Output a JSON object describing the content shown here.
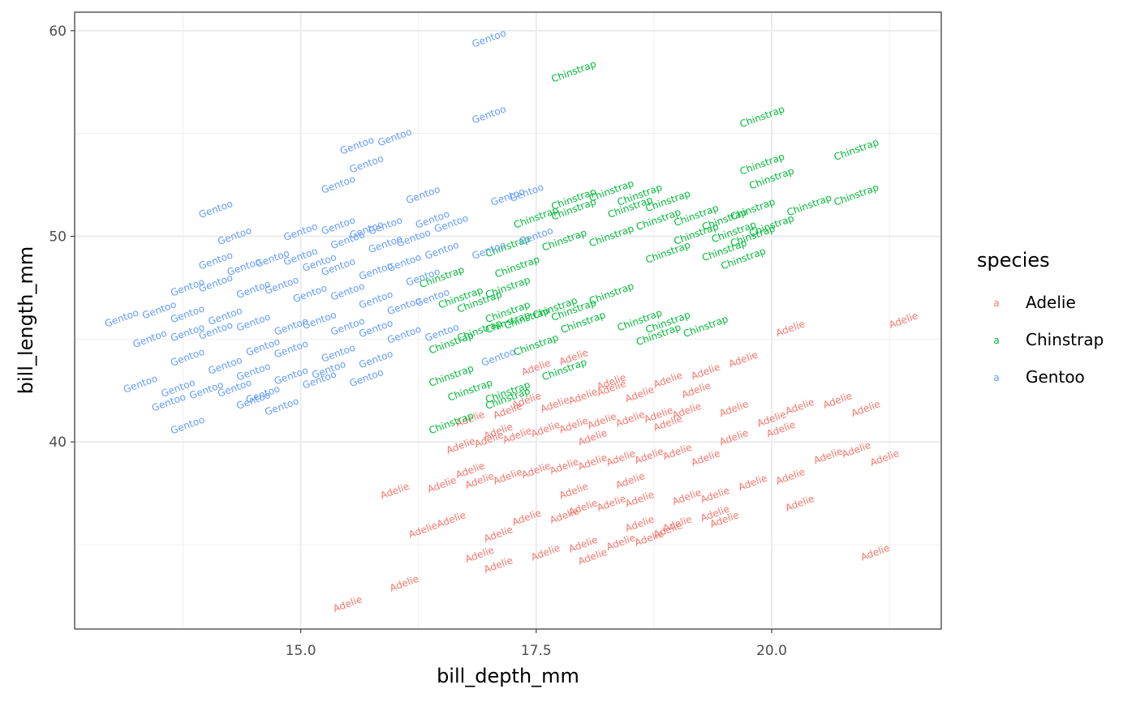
{
  "chart_data": {
    "type": "scatter",
    "title": "",
    "xlabel": "bill_depth_mm",
    "ylabel": "bill_length_mm",
    "xlim": [
      12.6,
      21.8
    ],
    "ylim": [
      30.9,
      60.9
    ],
    "x_ticks": [
      15.0,
      17.5,
      20.0
    ],
    "x_tick_labels": [
      "15.0",
      "17.5",
      "20.0"
    ],
    "y_ticks": [
      40,
      50,
      60
    ],
    "y_tick_labels": [
      "40",
      "50",
      "60"
    ],
    "grid": true,
    "marker": "text label (species name), rotated ~ -20°",
    "legend": {
      "title": "species",
      "placement": "right",
      "key_glyph": "a"
    },
    "series": [
      {
        "name": "Adelie",
        "color": "#F8766D",
        "points": [
          [
            15.5,
            32.1
          ],
          [
            16.1,
            33.1
          ],
          [
            17.1,
            34.0
          ],
          [
            16.9,
            34.5
          ],
          [
            17.6,
            34.6
          ],
          [
            18.1,
            34.4
          ],
          [
            18.4,
            35.1
          ],
          [
            18.0,
            35.0
          ],
          [
            17.1,
            35.5
          ],
          [
            18.7,
            35.3
          ],
          [
            18.9,
            35.7
          ],
          [
            19.0,
            36.0
          ],
          [
            19.5,
            36.2
          ],
          [
            20.3,
            37.0
          ],
          [
            21.1,
            34.6
          ],
          [
            16.3,
            35.7
          ],
          [
            16.6,
            36.2
          ],
          [
            17.4,
            36.3
          ],
          [
            17.8,
            36.4
          ],
          [
            18.0,
            36.8
          ],
          [
            18.3,
            37.0
          ],
          [
            18.6,
            37.2
          ],
          [
            19.1,
            37.3
          ],
          [
            19.4,
            37.4
          ],
          [
            16.0,
            37.6
          ],
          [
            16.5,
            37.9
          ],
          [
            16.9,
            38.1
          ],
          [
            17.2,
            38.3
          ],
          [
            17.5,
            38.6
          ],
          [
            17.8,
            38.8
          ],
          [
            18.1,
            39.0
          ],
          [
            18.4,
            39.2
          ],
          [
            18.7,
            39.3
          ],
          [
            19.0,
            39.5
          ],
          [
            19.3,
            39.2
          ],
          [
            19.8,
            38.0
          ],
          [
            20.2,
            38.3
          ],
          [
            20.6,
            39.3
          ],
          [
            20.9,
            39.6
          ],
          [
            21.2,
            39.2
          ],
          [
            16.7,
            39.8
          ],
          [
            17.0,
            40.1
          ],
          [
            17.3,
            40.3
          ],
          [
            17.6,
            40.6
          ],
          [
            17.9,
            40.8
          ],
          [
            18.2,
            41.0
          ],
          [
            18.5,
            41.1
          ],
          [
            18.8,
            41.3
          ],
          [
            19.1,
            41.5
          ],
          [
            19.6,
            41.6
          ],
          [
            20.0,
            41.1
          ],
          [
            20.3,
            41.7
          ],
          [
            20.7,
            42.0
          ],
          [
            21.0,
            41.6
          ],
          [
            16.8,
            41.1
          ],
          [
            17.2,
            41.5
          ],
          [
            17.4,
            42.0
          ],
          [
            17.7,
            41.8
          ],
          [
            18.0,
            42.2
          ],
          [
            18.3,
            42.6
          ],
          [
            18.6,
            42.3
          ],
          [
            18.9,
            43.0
          ],
          [
            19.3,
            43.4
          ],
          [
            19.7,
            44.0
          ],
          [
            17.5,
            43.6
          ],
          [
            17.9,
            44.1
          ],
          [
            20.2,
            45.5
          ],
          [
            21.4,
            45.9
          ],
          [
            18.3,
            42.9
          ],
          [
            19.2,
            42.5
          ],
          [
            18.1,
            40.2
          ],
          [
            17.1,
            40.5
          ],
          [
            16.8,
            38.6
          ],
          [
            18.5,
            38.1
          ],
          [
            19.6,
            40.2
          ],
          [
            20.1,
            40.6
          ],
          [
            18.9,
            40.9
          ],
          [
            19.4,
            36.5
          ],
          [
            17.9,
            37.6
          ],
          [
            18.6,
            36.0
          ]
        ]
      },
      {
        "name": "Chinstrap",
        "color": "#00BA38",
        "points": [
          [
            17.9,
            58.0
          ],
          [
            19.9,
            55.8
          ],
          [
            20.9,
            54.2
          ],
          [
            19.9,
            53.5
          ],
          [
            20.0,
            52.8
          ],
          [
            20.9,
            52.0
          ],
          [
            20.4,
            51.5
          ],
          [
            19.8,
            51.3
          ],
          [
            19.5,
            50.8
          ],
          [
            19.6,
            50.2
          ],
          [
            20.0,
            50.5
          ],
          [
            19.5,
            49.3
          ],
          [
            19.7,
            48.9
          ],
          [
            19.2,
            50.1
          ],
          [
            18.9,
            49.2
          ],
          [
            18.5,
            51.4
          ],
          [
            18.9,
            51.7
          ],
          [
            18.6,
            52.0
          ],
          [
            18.3,
            52.2
          ],
          [
            17.9,
            51.8
          ],
          [
            17.9,
            51.3
          ],
          [
            17.5,
            50.9
          ],
          [
            17.8,
            49.8
          ],
          [
            17.2,
            49.5
          ],
          [
            17.3,
            48.5
          ],
          [
            16.5,
            48.0
          ],
          [
            16.7,
            47.0
          ],
          [
            16.9,
            46.8
          ],
          [
            17.2,
            47.5
          ],
          [
            17.2,
            46.3
          ],
          [
            17.4,
            46.0
          ],
          [
            17.7,
            46.5
          ],
          [
            17.9,
            46.4
          ],
          [
            18.3,
            47.2
          ],
          [
            18.0,
            45.8
          ],
          [
            18.6,
            45.9
          ],
          [
            18.8,
            45.2
          ],
          [
            18.9,
            45.8
          ],
          [
            19.3,
            45.6
          ],
          [
            17.5,
            44.7
          ],
          [
            16.6,
            44.8
          ],
          [
            16.9,
            45.4
          ],
          [
            17.2,
            45.8
          ],
          [
            17.8,
            43.5
          ],
          [
            16.6,
            43.2
          ],
          [
            16.8,
            42.5
          ],
          [
            17.2,
            42.4
          ],
          [
            17.2,
            42.1
          ],
          [
            16.6,
            40.9
          ],
          [
            18.3,
            50.0
          ],
          [
            18.8,
            50.8
          ],
          [
            19.2,
            51.0
          ],
          [
            19.8,
            50.0
          ]
        ]
      },
      {
        "name": "Gentoo",
        "color": "#619CFF",
        "points": [
          [
            17.0,
            59.6
          ],
          [
            17.0,
            55.9
          ],
          [
            16.0,
            54.8
          ],
          [
            15.6,
            54.4
          ],
          [
            15.7,
            53.5
          ],
          [
            15.4,
            52.5
          ],
          [
            16.3,
            52.0
          ],
          [
            17.2,
            51.9
          ],
          [
            17.4,
            52.1
          ],
          [
            14.1,
            51.3
          ],
          [
            14.3,
            50.0
          ],
          [
            15.0,
            50.2
          ],
          [
            15.4,
            50.5
          ],
          [
            15.7,
            50.3
          ],
          [
            15.9,
            50.5
          ],
          [
            16.4,
            50.8
          ],
          [
            16.6,
            50.6
          ],
          [
            15.5,
            49.8
          ],
          [
            15.9,
            49.6
          ],
          [
            16.2,
            49.9
          ],
          [
            16.5,
            49.3
          ],
          [
            17.0,
            49.3
          ],
          [
            17.5,
            50.0
          ],
          [
            14.1,
            48.8
          ],
          [
            14.4,
            48.5
          ],
          [
            14.7,
            48.9
          ],
          [
            15.0,
            49.0
          ],
          [
            15.2,
            48.7
          ],
          [
            15.4,
            48.5
          ],
          [
            15.8,
            48.3
          ],
          [
            16.1,
            48.7
          ],
          [
            16.3,
            48.0
          ],
          [
            13.8,
            47.5
          ],
          [
            14.1,
            47.7
          ],
          [
            14.5,
            47.4
          ],
          [
            14.8,
            47.6
          ],
          [
            15.1,
            47.2
          ],
          [
            15.5,
            47.3
          ],
          [
            15.8,
            46.9
          ],
          [
            16.1,
            46.6
          ],
          [
            16.4,
            47.0
          ],
          [
            13.1,
            46.0
          ],
          [
            13.5,
            46.4
          ],
          [
            13.8,
            46.2
          ],
          [
            14.2,
            46.1
          ],
          [
            14.5,
            45.8
          ],
          [
            14.9,
            45.6
          ],
          [
            15.2,
            45.9
          ],
          [
            15.5,
            45.6
          ],
          [
            15.8,
            45.5
          ],
          [
            16.1,
            45.2
          ],
          [
            16.5,
            45.3
          ],
          [
            13.4,
            45.0
          ],
          [
            13.8,
            45.3
          ],
          [
            14.1,
            45.4
          ],
          [
            14.6,
            44.6
          ],
          [
            14.9,
            44.5
          ],
          [
            15.4,
            44.3
          ],
          [
            15.8,
            44.0
          ],
          [
            17.1,
            44.1
          ],
          [
            13.8,
            44.1
          ],
          [
            14.2,
            43.7
          ],
          [
            14.5,
            43.4
          ],
          [
            14.9,
            43.2
          ],
          [
            15.2,
            43.0
          ],
          [
            15.7,
            43.1
          ],
          [
            13.3,
            42.8
          ],
          [
            13.7,
            42.6
          ],
          [
            14.0,
            42.5
          ],
          [
            14.3,
            42.6
          ],
          [
            14.6,
            42.3
          ],
          [
            15.3,
            43.5
          ],
          [
            13.6,
            41.9
          ],
          [
            14.5,
            42.0
          ],
          [
            13.8,
            40.8
          ],
          [
            14.8,
            41.7
          ]
        ]
      }
    ]
  }
}
